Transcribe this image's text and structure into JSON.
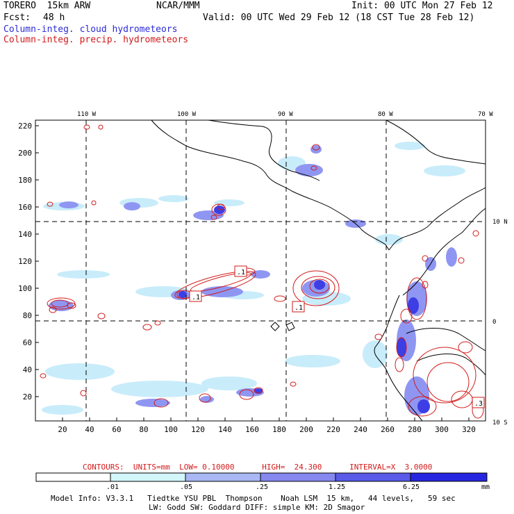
{
  "header": {
    "model": "TORERO  15km ARW",
    "center": "NCAR/MMM",
    "init": "Init: 00 UTC Mon 27 Feb 12",
    "fcst_label": "Fcst:",
    "fcst_value": "48 h",
    "valid": "Valid: 00 UTC Wed 29 Feb 12 (18 CST Tue 28 Feb 12)",
    "field1": "Column-integ. cloud hydrometeors",
    "field2": "Column-integ. precip. hydrometeors"
  },
  "map": {
    "top_lon_labels": [
      "110 W",
      "100 W",
      "90 W",
      "80 W",
      "70 W"
    ],
    "right_lat_labels": [
      "10 N",
      "0",
      "10 S"
    ],
    "y_ticks": [
      "220",
      "200",
      "180",
      "160",
      "140",
      "120",
      "100",
      "80",
      "60",
      "40",
      "20"
    ],
    "x_ticks": [
      "20",
      "40",
      "60",
      "80",
      "100",
      "120",
      "140",
      "160",
      "180",
      "200",
      "220",
      "240",
      "260",
      "280",
      "300",
      "320"
    ],
    "contour_labels": [
      ".1",
      ".1",
      ".1",
      ".3"
    ]
  },
  "contour_info": {
    "text": "CONTOURS:  UNITS=mm  LOW= 0.10000      HIGH=  24.300      INTERVAL=X  3.0000"
  },
  "colorbar": {
    "labels": [
      ".01",
      ".05",
      ".25",
      "1.25",
      "6.25"
    ],
    "unit": "mm",
    "colors": [
      "#ffffff",
      "#d2f6fa",
      "#a9b8f4",
      "#8688f0",
      "#5a5ae8",
      "#2626e0"
    ]
  },
  "footer": {
    "line1": "Model Info: V3.3.1   Tiedtke YSU PBL  Thompson    Noah LSM  15 km,   44 levels,   59 sec",
    "line2": "LW: Godd SW: Goddard DIFF: simple KM: 2D Smagor"
  },
  "colors": {
    "cloud": "#6a6ef0",
    "cloud_light": "#c8ecfa",
    "precip": "#d21a1a"
  }
}
